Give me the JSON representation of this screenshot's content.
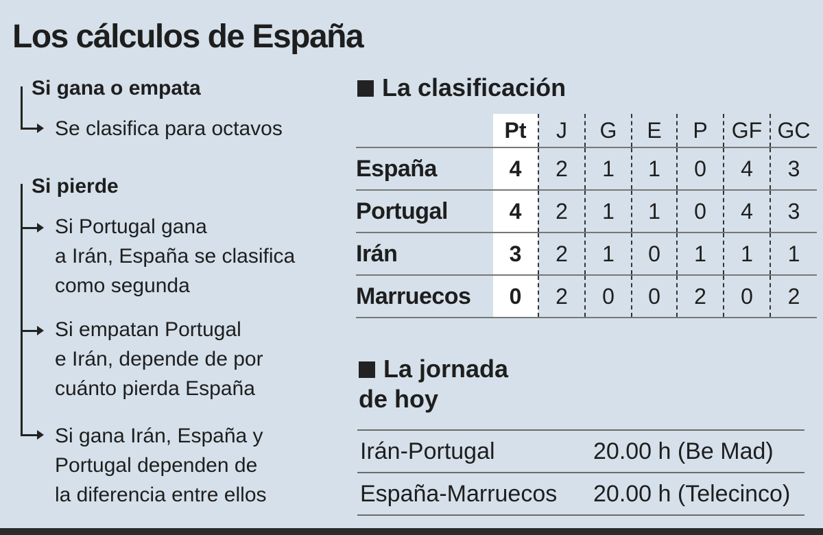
{
  "title": "Los cálculos de España",
  "scenarios": [
    {
      "heading": "Si gana o empata",
      "items": [
        "Se clasifica para octavos"
      ]
    },
    {
      "heading": "Si pierde",
      "items": [
        [
          "Si Portugal gana",
          "a Irán, España se clasifica",
          "como segunda"
        ],
        [
          "Si empatan Portugal",
          "e Irán, depende de por",
          "cuánto pierda España"
        ],
        [
          "Si gana Irán, España y",
          "Portugal dependen de",
          "la diferencia entre ellos"
        ]
      ]
    }
  ],
  "standings": {
    "heading": "La clasificación",
    "columns": [
      "Pt",
      "J",
      "G",
      "E",
      "P",
      "GF",
      "GC"
    ],
    "rows": [
      {
        "team": "España",
        "values": [
          "4",
          "2",
          "1",
          "1",
          "0",
          "4",
          "3"
        ]
      },
      {
        "team": "Portugal",
        "values": [
          "4",
          "2",
          "1",
          "1",
          "0",
          "4",
          "3"
        ]
      },
      {
        "team": "Irán",
        "values": [
          "3",
          "2",
          "1",
          "0",
          "1",
          "1",
          "1"
        ]
      },
      {
        "team": "Marruecos",
        "values": [
          "0",
          "2",
          "0",
          "0",
          "2",
          "0",
          "2"
        ]
      }
    ]
  },
  "schedule": {
    "heading_line1": "La jornada",
    "heading_line2": "de hoy",
    "matches": [
      {
        "match": "Irán-Portugal",
        "time": "20.00 h (Be Mad)"
      },
      {
        "match": "España-Marruecos",
        "time": "20.00 h (Telecinco)"
      }
    ]
  },
  "colors": {
    "background": "#d5e0ea",
    "text": "#1e1e1e",
    "points_column": "#ffffff"
  }
}
